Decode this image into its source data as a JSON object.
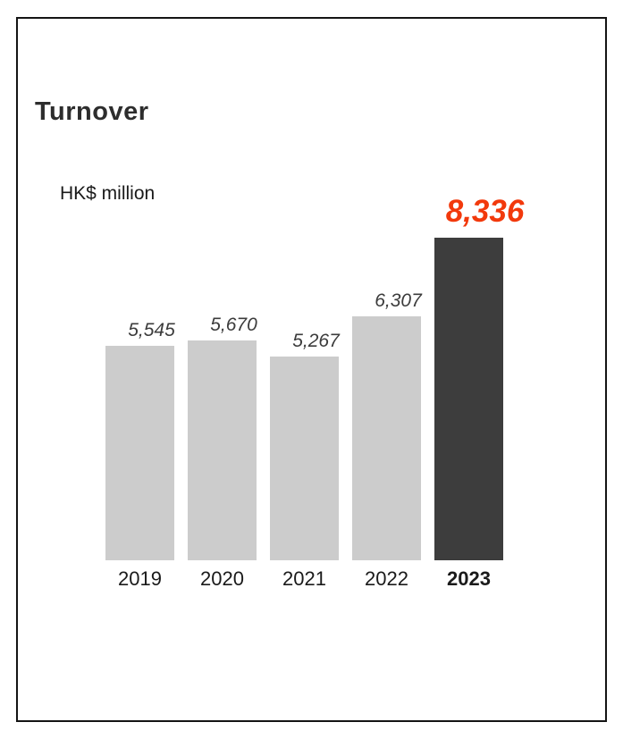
{
  "colors": {
    "frame_border": "#141414",
    "title": "#2d2d2d",
    "text": "#1a1a1a",
    "bar": "#cccccc",
    "bar_highlight": "#3d3d3d",
    "value_label": "#3c3c3c",
    "value_label_highlight": "#f2390c"
  },
  "chart_data": {
    "type": "bar",
    "title": "Turnover",
    "unit_label": "HK$ million",
    "categories": [
      "2019",
      "2020",
      "2021",
      "2022",
      "2023"
    ],
    "values": [
      5545,
      5670,
      5267,
      6307,
      8336
    ],
    "value_labels": [
      "5,545",
      "5,670",
      "5,267",
      "6,307",
      "8,336"
    ],
    "highlight_index": 4,
    "xlabel": "",
    "ylabel": "HK$ million",
    "ylim": [
      0,
      8336
    ],
    "grid": false,
    "legend": false,
    "annotations": "2023 bar and its value label are emphasized (dark bar, orange italic label)"
  }
}
